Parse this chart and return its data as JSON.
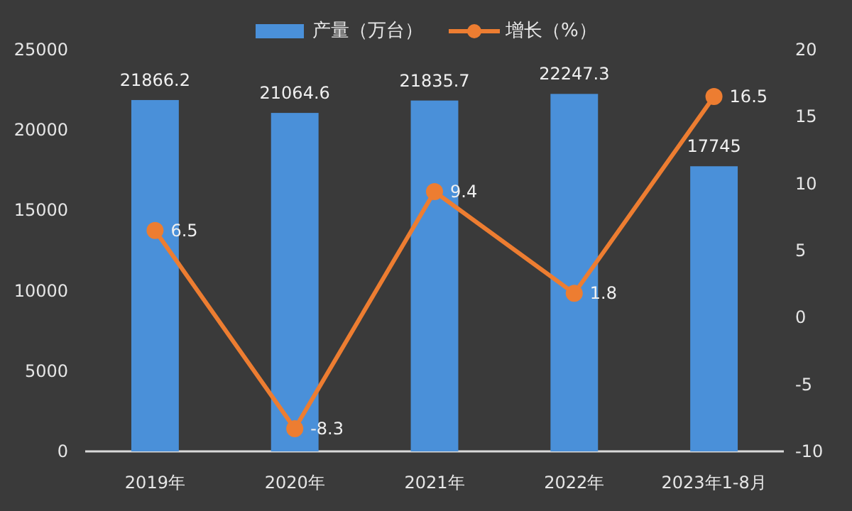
{
  "chart_data": {
    "type": "bar",
    "categories": [
      "2019年",
      "2020年",
      "2021年",
      "2022年",
      "2023年1-8月"
    ],
    "series": [
      {
        "name": "产量（万台）",
        "color": "#4a90d9",
        "values": [
          21866.2,
          21064.6,
          21835.7,
          22247.3,
          17745
        ]
      },
      {
        "name": "增长（%）",
        "type": "line",
        "axis": "y2",
        "color": "#ed7d31",
        "values": [
          6.5,
          -8.3,
          9.4,
          1.8,
          16.5
        ]
      }
    ],
    "ylim": [
      0,
      25000
    ],
    "yticks": [
      0,
      5000,
      10000,
      15000,
      20000,
      25000
    ],
    "y2lim": [
      -10,
      20
    ],
    "y2ticks": [
      -10,
      -5,
      0,
      5,
      10,
      15,
      20
    ],
    "data_labels": true,
    "legend": "top",
    "marker": "circle",
    "grid": false
  }
}
